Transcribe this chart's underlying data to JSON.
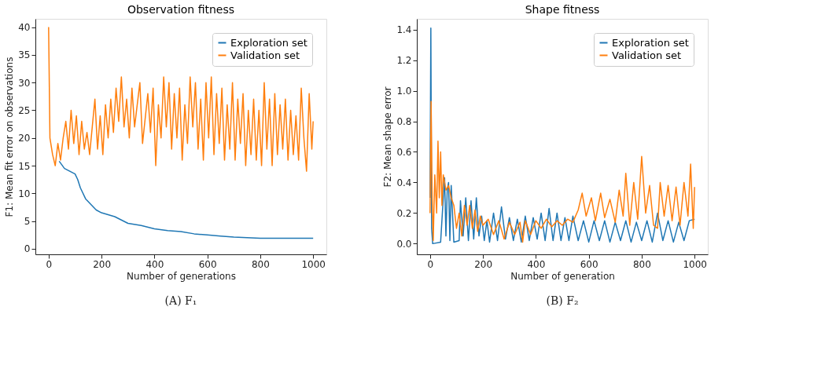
{
  "chart_data": [
    {
      "type": "line",
      "title": "Observation fitness",
      "xlabel": "Number of generations",
      "ylabel": "F1: Mean fit error on observations",
      "annotations": [
        "(A) F₁"
      ],
      "xlim": [
        -50,
        1050
      ],
      "ylim": [
        -1,
        41.5
      ],
      "xticks": [
        0,
        200,
        400,
        600,
        800,
        1000
      ],
      "yticks": [
        0,
        5,
        10,
        15,
        20,
        25,
        30,
        35,
        40
      ],
      "grid": false,
      "legend": "top right",
      "line_style": "solid",
      "marker": "none",
      "series": [
        {
          "name": "Exploration set",
          "color": "#1f77b4",
          "x": [
            40,
            60,
            80,
            100,
            110,
            120,
            140,
            160,
            180,
            200,
            250,
            300,
            350,
            400,
            450,
            500,
            550,
            600,
            650,
            700,
            800,
            900,
            1000
          ],
          "values": [
            15.8,
            14.5,
            14,
            13.5,
            12.5,
            11,
            9,
            8,
            7,
            6.5,
            5.8,
            4.6,
            4.2,
            3.6,
            3.3,
            3.1,
            2.7,
            2.5,
            2.3,
            2.1,
            1.9,
            1.9,
            1.9
          ]
        },
        {
          "name": "Validation set",
          "color": "#ff7f0e",
          "x": [
            0,
            5,
            15,
            25,
            35,
            45,
            55,
            65,
            75,
            85,
            95,
            105,
            115,
            125,
            135,
            145,
            155,
            165,
            175,
            185,
            195,
            205,
            215,
            225,
            235,
            245,
            255,
            265,
            275,
            285,
            295,
            305,
            315,
            325,
            345,
            355,
            375,
            385,
            395,
            405,
            415,
            425,
            435,
            445,
            455,
            465,
            475,
            485,
            495,
            505,
            515,
            525,
            535,
            545,
            555,
            565,
            575,
            585,
            595,
            605,
            615,
            625,
            635,
            645,
            655,
            665,
            675,
            685,
            695,
            705,
            715,
            725,
            735,
            745,
            755,
            765,
            775,
            785,
            795,
            805,
            815,
            825,
            835,
            845,
            855,
            865,
            875,
            885,
            895,
            905,
            915,
            925,
            935,
            945,
            955,
            965,
            975,
            985,
            995,
            1000
          ],
          "values": [
            40,
            20,
            17,
            15,
            19,
            16,
            20,
            23,
            18,
            25,
            19,
            24,
            17,
            23,
            18,
            21,
            17,
            22,
            27,
            18,
            24,
            17,
            26,
            20,
            27,
            21,
            29,
            23,
            31,
            22,
            27,
            20,
            29,
            22,
            30,
            19,
            28,
            21,
            29,
            15,
            26,
            20,
            31,
            22,
            30,
            18,
            28,
            20,
            29,
            16,
            26,
            19,
            31,
            22,
            30,
            18,
            27,
            16,
            30,
            20,
            31,
            17,
            28,
            19,
            29,
            16,
            26,
            18,
            30,
            16,
            27,
            19,
            28,
            15,
            25,
            17,
            27,
            16,
            25,
            15,
            30,
            18,
            27,
            15,
            28,
            17,
            26,
            18,
            27,
            16,
            25,
            17,
            24,
            16,
            29,
            20,
            14,
            28,
            18,
            23
          ]
        }
      ]
    },
    {
      "type": "line",
      "title": "Shape fitness",
      "xlabel": "Number of generation",
      "ylabel": "F2: Mean shape error",
      "annotations": [
        "(B) F₂"
      ],
      "xlim": [
        -50,
        1050
      ],
      "ylim": [
        -0.07,
        1.47
      ],
      "xticks": [
        0,
        200,
        400,
        600,
        800,
        1000
      ],
      "yticks": [
        {
          "value": 0,
          "label": "0.0"
        },
        0.2,
        0.4,
        0.6,
        0.8,
        {
          "value": 1,
          "label": "1.0"
        },
        1.2,
        1.4
      ],
      "grid": false,
      "legend": "top right",
      "line_style": "solid",
      "marker": "none",
      "series": [
        {
          "name": "Exploration set",
          "color": "#1f77b4",
          "x": [
            0,
            3,
            6,
            10,
            40,
            50,
            55,
            60,
            65,
            70,
            75,
            80,
            90,
            110,
            115,
            125,
            135,
            145,
            155,
            165,
            175,
            185,
            195,
            205,
            215,
            225,
            240,
            255,
            270,
            285,
            300,
            315,
            330,
            345,
            360,
            375,
            390,
            405,
            420,
            435,
            450,
            465,
            480,
            495,
            510,
            525,
            540,
            560,
            580,
            600,
            620,
            640,
            660,
            680,
            700,
            720,
            740,
            760,
            780,
            800,
            820,
            840,
            860,
            880,
            900,
            920,
            940,
            960,
            980,
            1000
          ],
          "values": [
            0.3,
            1.41,
            0.1,
            0,
            0.01,
            0.3,
            0.43,
            0.05,
            0.35,
            0.4,
            0.02,
            0.38,
            0.01,
            0.02,
            0.28,
            0.05,
            0.3,
            0.02,
            0.28,
            0.03,
            0.3,
            0.05,
            0.18,
            0.02,
            0.15,
            0.01,
            0.2,
            0.02,
            0.24,
            0.03,
            0.17,
            0.02,
            0.16,
            0.01,
            0.18,
            0.02,
            0.17,
            0.03,
            0.2,
            0.02,
            0.23,
            0.02,
            0.2,
            0.02,
            0.17,
            0.02,
            0.18,
            0.02,
            0.15,
            0.01,
            0.15,
            0.02,
            0.15,
            0.01,
            0.14,
            0.02,
            0.15,
            0.01,
            0.14,
            0.02,
            0.15,
            0.01,
            0.2,
            0.02,
            0.15,
            0.01,
            0.14,
            0.02,
            0.15,
            0.16
          ]
        },
        {
          "name": "Validation set",
          "color": "#ff7f0e",
          "x": [
            0,
            4,
            8,
            12,
            18,
            25,
            30,
            35,
            40,
            45,
            50,
            60,
            70,
            80,
            90,
            100,
            110,
            120,
            130,
            140,
            150,
            160,
            170,
            180,
            190,
            200,
            220,
            240,
            260,
            280,
            300,
            320,
            340,
            350,
            360,
            380,
            400,
            420,
            440,
            460,
            480,
            500,
            520,
            540,
            560,
            575,
            590,
            610,
            625,
            645,
            660,
            680,
            700,
            715,
            730,
            740,
            755,
            770,
            785,
            800,
            815,
            830,
            845,
            860,
            870,
            885,
            900,
            915,
            930,
            945,
            960,
            975,
            985,
            995,
            1000
          ],
          "values": [
            0.2,
            0.93,
            0.3,
            0.02,
            0.45,
            0.2,
            0.67,
            0.3,
            0.6,
            0.25,
            0.45,
            0.35,
            0.38,
            0.3,
            0.25,
            0.1,
            0.2,
            0.05,
            0.25,
            0.12,
            0.25,
            0.1,
            0.22,
            0.08,
            0.18,
            0.12,
            0.16,
            0.06,
            0.15,
            0.03,
            0.14,
            0.06,
            0.14,
            0.01,
            0.15,
            0.06,
            0.15,
            0.1,
            0.16,
            0.11,
            0.15,
            0.12,
            0.16,
            0.14,
            0.22,
            0.33,
            0.18,
            0.3,
            0.15,
            0.33,
            0.17,
            0.29,
            0.14,
            0.35,
            0.18,
            0.46,
            0.12,
            0.4,
            0.16,
            0.57,
            0.2,
            0.38,
            0.12,
            0.1,
            0.4,
            0.18,
            0.38,
            0.15,
            0.37,
            0.12,
            0.4,
            0.18,
            0.52,
            0.1,
            0.37
          ]
        }
      ]
    }
  ]
}
